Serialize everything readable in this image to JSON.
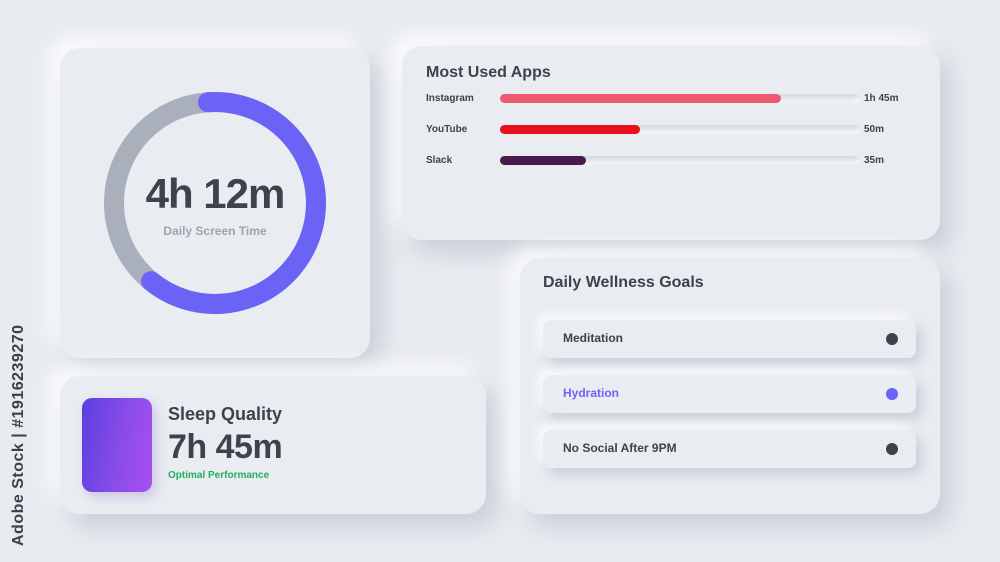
{
  "screen_time": {
    "value": "4h 12m",
    "label": "Daily Screen Time",
    "progress": 0.62,
    "colors": {
      "progress": "#6b63f5",
      "track": "#a9b0bc"
    }
  },
  "sleep": {
    "title": "Sleep Quality",
    "value": "7h 45m",
    "status": "Optimal Performance",
    "status_color": "#22b05a"
  },
  "apps": {
    "title": "Most Used Apps",
    "items": [
      {
        "name": "Instagram",
        "time": "1h 45m",
        "fraction": 0.78,
        "color": "#f05a72"
      },
      {
        "name": "YouTube",
        "time": "50m",
        "fraction": 0.39,
        "color": "#e8101c"
      },
      {
        "name": "Slack",
        "time": "35m",
        "fraction": 0.24,
        "color": "#4a1a4a"
      }
    ]
  },
  "wellness": {
    "title": "Daily Wellness Goals",
    "goals": [
      {
        "label": "Meditation",
        "active": false
      },
      {
        "label": "Hydration",
        "active": true
      },
      {
        "label": "No Social After 9PM",
        "active": false
      }
    ],
    "accent": "#6b63f5"
  },
  "watermark": {
    "side_text": "Adobe Stock | #1916239270"
  }
}
